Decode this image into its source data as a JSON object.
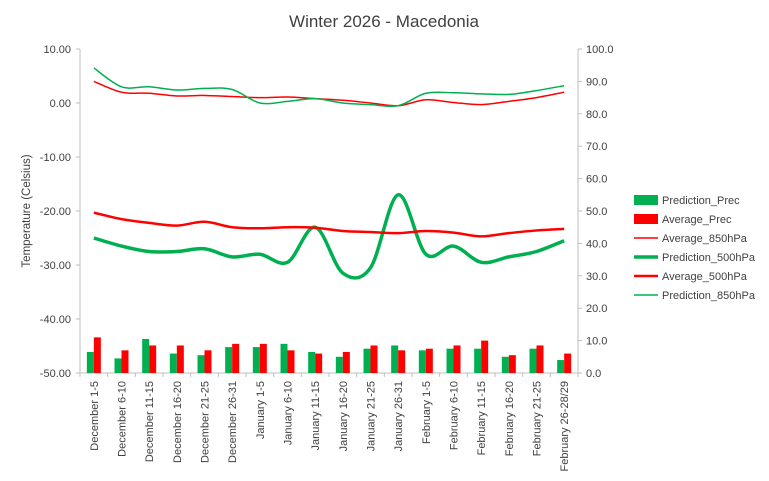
{
  "chart_data": {
    "type": "bar+line",
    "title": "Winter 2026 - Macedonia",
    "ylabel_left": "Temperature (Celsius)",
    "ylabel_right": "",
    "ylim_left": [
      -50,
      10
    ],
    "ylim_right": [
      0,
      100
    ],
    "yticks_left": [
      "10.00",
      "0.00",
      "-10.00",
      "-20.00",
      "-30.00",
      "-40.00",
      "-50.00"
    ],
    "yticks_right": [
      "100.0",
      "90.0",
      "80.0",
      "70.0",
      "60.0",
      "50.0",
      "40.0",
      "30.0",
      "20.0",
      "10.0",
      "0.0"
    ],
    "grid": false,
    "legend_position": "right",
    "categories": [
      "December 1-5",
      "December 6-10",
      "December 11-15",
      "December 16-20",
      "December 21-25",
      "December 26-31",
      "January 1-5",
      "January 6-10",
      "January 11-15",
      "January 16-20",
      "January 21-25",
      "January 26-31",
      "February 1-5",
      "February 6-10",
      "February 11-15",
      "February 16-20",
      "February 21-25",
      "February 26-28/29"
    ],
    "bar_series": [
      {
        "name": "Prediction_Prec",
        "axis": "right",
        "color": "#00b050",
        "values": [
          6.5,
          4.5,
          10.5,
          6.0,
          5.5,
          8.0,
          8.0,
          9.0,
          6.5,
          5.0,
          7.5,
          8.5,
          7.0,
          7.5,
          7.5,
          5.0,
          7.5,
          4.0
        ]
      },
      {
        "name": "Average_Prec",
        "axis": "right",
        "color": "#ff0000",
        "values": [
          11.0,
          7.0,
          8.5,
          8.5,
          7.0,
          9.0,
          9.0,
          7.0,
          6.0,
          6.5,
          8.5,
          7.0,
          7.5,
          8.5,
          10.0,
          5.5,
          8.5,
          6.0
        ]
      }
    ],
    "line_series": [
      {
        "name": "Average_850hPa",
        "axis": "left",
        "color": "#ff0000",
        "width": 1.5,
        "values": [
          4.0,
          2.0,
          1.8,
          1.3,
          1.4,
          1.2,
          1.0,
          1.1,
          0.8,
          0.5,
          0.0,
          -0.5,
          0.6,
          0.1,
          -0.3,
          0.3,
          1.0,
          2.0
        ]
      },
      {
        "name": "Prediction_500hPa",
        "axis": "left",
        "color": "#00b050",
        "width": 3.5,
        "values": [
          -25.0,
          -26.5,
          -27.5,
          -27.5,
          -27.0,
          -28.5,
          -28.0,
          -29.5,
          -23.0,
          -31.5,
          -30.5,
          -17.0,
          -28.0,
          -26.5,
          -29.5,
          -28.5,
          -27.5,
          -25.5
        ]
      },
      {
        "name": "Average_500hPa",
        "axis": "left",
        "color": "#ff0000",
        "width": 2.5,
        "values": [
          -20.3,
          -21.5,
          -22.2,
          -22.7,
          -22.0,
          -23.0,
          -23.2,
          -23.0,
          -23.1,
          -23.7,
          -23.9,
          -24.1,
          -23.7,
          -24.0,
          -24.7,
          -24.1,
          -23.6,
          -23.3
        ]
      },
      {
        "name": "Prediction_850hPa",
        "axis": "left",
        "color": "#00b050",
        "width": 1.5,
        "values": [
          6.5,
          3.0,
          3.0,
          2.4,
          2.7,
          2.5,
          0.0,
          0.3,
          0.8,
          0.0,
          -0.3,
          -0.5,
          1.8,
          1.9,
          1.7,
          1.6,
          2.3,
          3.2
        ]
      }
    ],
    "legend_order": [
      "Prediction_Prec",
      "Average_Prec",
      "Average_850hPa",
      "Prediction_500hPa",
      "Average_500hPa",
      "Prediction_850hPa"
    ]
  }
}
